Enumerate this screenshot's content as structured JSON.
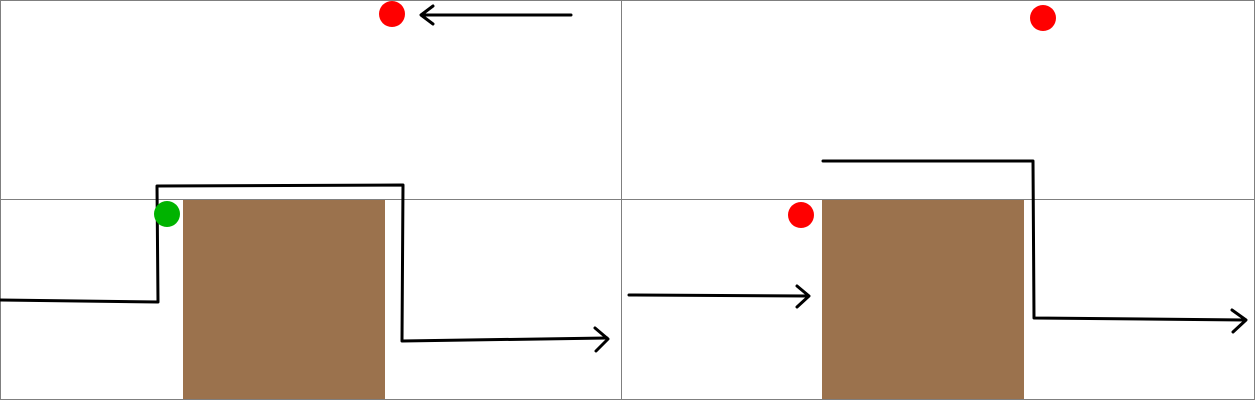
{
  "colors": {
    "background": "#ffffff",
    "grid_line": "#7f7f7f",
    "block": "#9b724d",
    "path": "#000000",
    "red_dot": "#ff0000",
    "green_dot": "#00b300"
  },
  "panels": [
    {
      "label": "",
      "block": {
        "shape": "brown-rectangle"
      },
      "dots": [
        {
          "color": "red",
          "position": "top-center"
        },
        {
          "color": "green",
          "position": "left-edge-of-block"
        }
      ],
      "path": "climbs-over-block-then-right-arrow",
      "extra_arrow": "left-pointing-near-red-dot"
    },
    {
      "label": "",
      "block": {
        "shape": "brown-rectangle"
      },
      "dots": [
        {
          "color": "red",
          "position": "top-right"
        },
        {
          "color": "red",
          "position": "left-edge-of-block"
        }
      ],
      "path": "arrow-toward-block-then-path-from-top-right-to-right-arrow"
    }
  ]
}
